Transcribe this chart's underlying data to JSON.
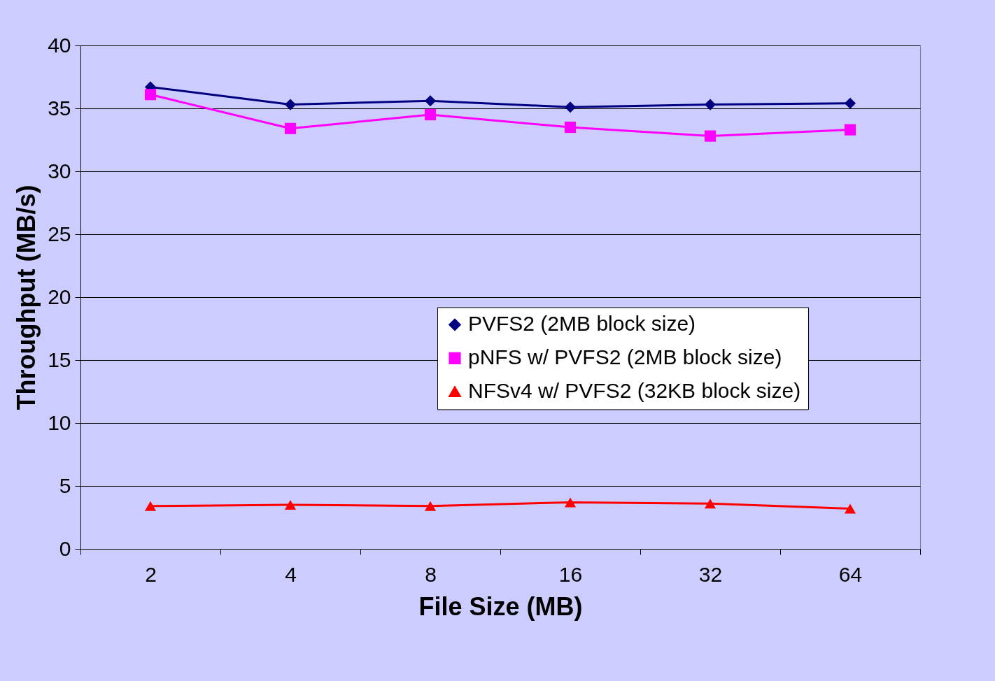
{
  "chart_data": {
    "type": "line",
    "xlabel": "File Size (MB)",
    "ylabel": "Throughput (MB/s)",
    "categories": [
      "2",
      "4",
      "8",
      "16",
      "32",
      "64"
    ],
    "ylim": [
      0,
      40
    ],
    "yticks": [
      0,
      5,
      10,
      15,
      20,
      25,
      30,
      35,
      40
    ],
    "grid": "y",
    "legend": "right",
    "series": [
      {
        "name": "PVFS2 (2MB block size)",
        "color": "#000080",
        "marker": "diamond",
        "values": [
          36.7,
          35.3,
          35.6,
          35.1,
          35.3,
          35.4
        ]
      },
      {
        "name": "pNFS w/ PVFS2 (2MB block size)",
        "color": "#ff00ff",
        "marker": "square",
        "values": [
          36.1,
          33.4,
          34.5,
          33.5,
          32.8,
          33.3
        ]
      },
      {
        "name": "NFSv4 w/ PVFS2 (32KB block size)",
        "color": "#ff0000",
        "marker": "triangle",
        "values": [
          3.4,
          3.5,
          3.4,
          3.7,
          3.6,
          3.2
        ]
      }
    ]
  }
}
